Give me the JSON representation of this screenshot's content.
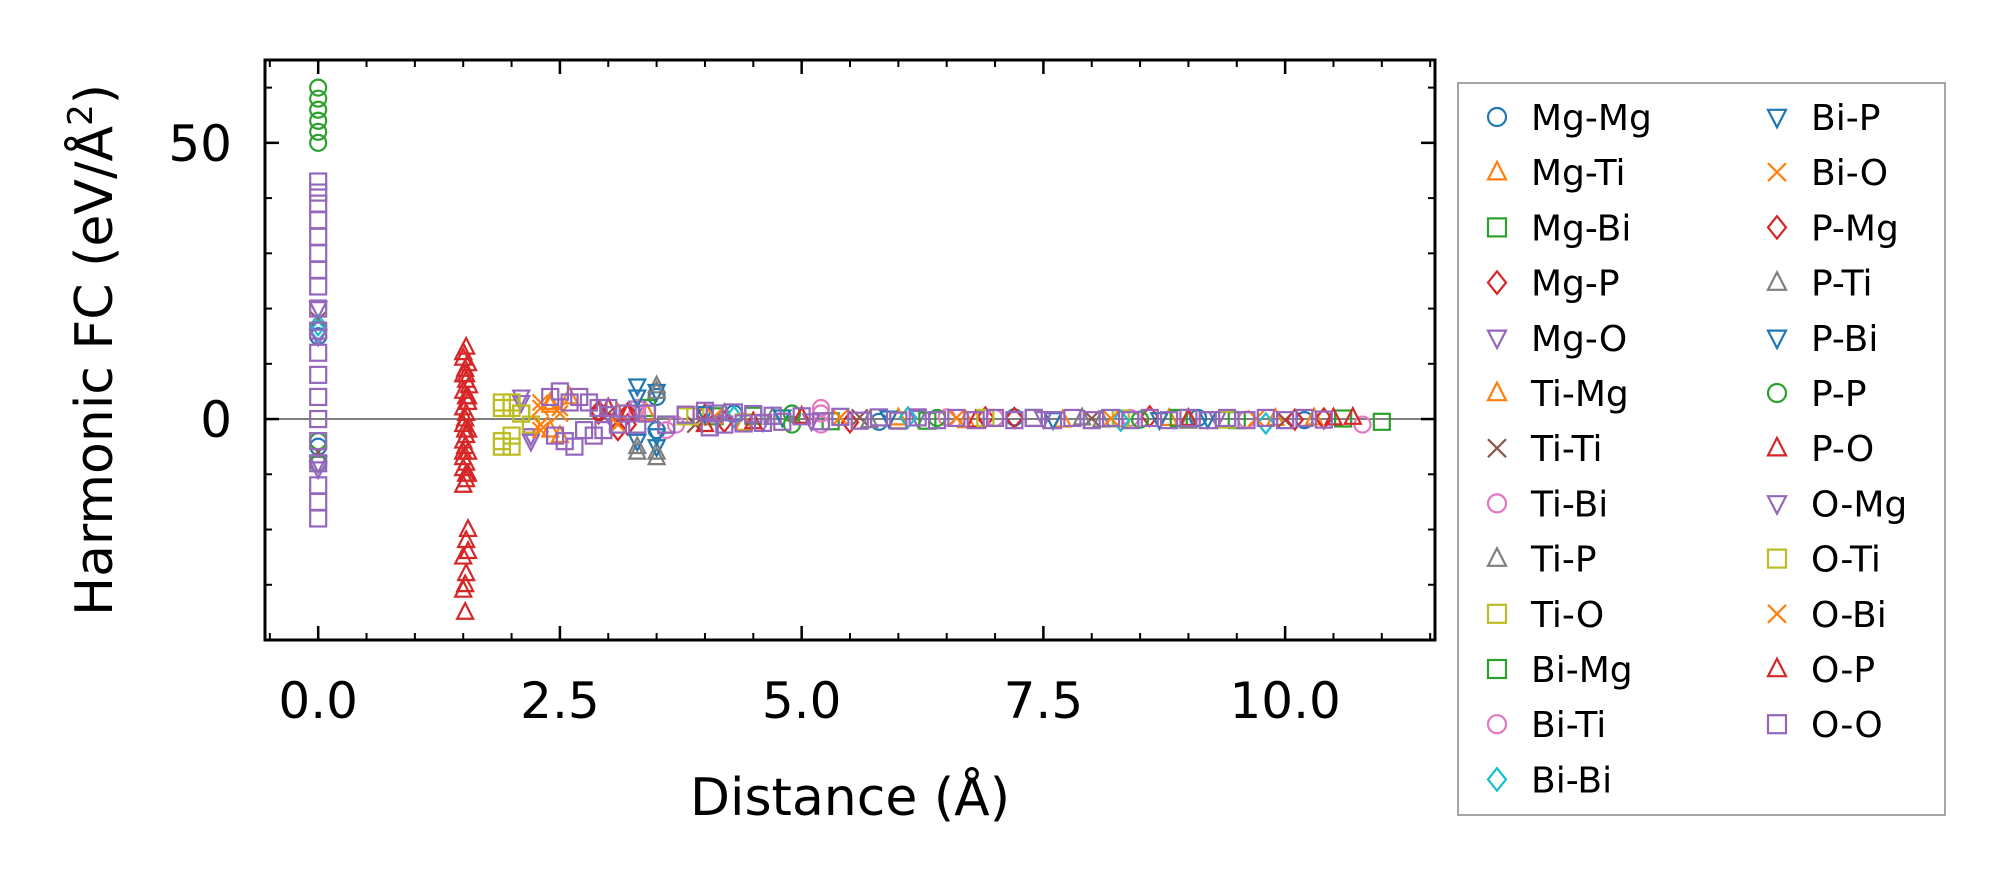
{
  "chart_data": {
    "type": "scatter",
    "title": "",
    "xlabel": "Distance (Å)",
    "ylabel": "Harmonic FC (eV/Å",
    "ylabel_sup": "2",
    "ylabel_close": ")",
    "xlim": [
      -0.55,
      11.55
    ],
    "ylim": [
      -40,
      65
    ],
    "xticks": [
      0.0,
      2.5,
      5.0,
      7.5,
      10.0
    ],
    "xtick_labels": [
      "0.0",
      "2.5",
      "5.0",
      "7.5",
      "10.0"
    ],
    "yticks": [
      0,
      50
    ],
    "ytick_labels": [
      "0",
      "50"
    ],
    "x_minor_step": 0.5,
    "y_minor_step": 10,
    "zero_line": true,
    "grid": false,
    "legend_position": "right (outside)",
    "series": [
      {
        "name": "Mg-Mg",
        "marker": "circle",
        "color": "#1f77b4",
        "points": [
          [
            0,
            15
          ],
          [
            0,
            -5
          ],
          [
            3.5,
            4
          ],
          [
            3.5,
            -2
          ],
          [
            4.3,
            1
          ],
          [
            5.8,
            -0.5
          ],
          [
            7.2,
            0.3
          ],
          [
            9.1,
            0.2
          ],
          [
            10.2,
            -0.2
          ]
        ]
      },
      {
        "name": "Mg-Ti",
        "marker": "triangle-up",
        "color": "#ff7f0e",
        "points": [
          [
            2.4,
            3
          ],
          [
            2.4,
            -2
          ],
          [
            2.6,
            4
          ],
          [
            3.1,
            1
          ],
          [
            4.4,
            -0.8
          ],
          [
            6.0,
            0.2
          ],
          [
            6.7,
            -0.3
          ],
          [
            8.8,
            0.1
          ],
          [
            10.3,
            0.2
          ]
        ]
      },
      {
        "name": "Mg-Bi",
        "marker": "square",
        "color": "#2ca02c",
        "points": [
          [
            3.4,
            2
          ],
          [
            3.6,
            -1
          ],
          [
            4.1,
            0.5
          ],
          [
            5.3,
            -0.4
          ],
          [
            7.4,
            0.2
          ],
          [
            9.5,
            -0.2
          ],
          [
            11.0,
            -0.5
          ]
        ]
      },
      {
        "name": "Mg-P",
        "marker": "diamond",
        "color": "#d62728",
        "points": [
          [
            2.9,
            1.5
          ],
          [
            3.2,
            -1
          ],
          [
            4.0,
            0.8
          ],
          [
            5.5,
            -0.6
          ],
          [
            6.9,
            0.3
          ],
          [
            8.6,
            0.5
          ],
          [
            10.4,
            0.1
          ]
        ]
      },
      {
        "name": "Mg-O",
        "marker": "triangle-down",
        "color": "#9467bd",
        "points": [
          [
            0,
            20
          ],
          [
            0,
            -8
          ],
          [
            2.1,
            4
          ],
          [
            2.2,
            -3
          ],
          [
            3.3,
            2
          ],
          [
            4.6,
            -0.5
          ],
          [
            6.2,
            0.3
          ],
          [
            9.3,
            0.1
          ]
        ]
      },
      {
        "name": "Ti-Mg",
        "marker": "triangle-up",
        "color": "#ff7f0e",
        "points": [
          [
            2.4,
            2.5
          ],
          [
            2.5,
            -3
          ],
          [
            3.4,
            1
          ],
          [
            5.0,
            0.4
          ],
          [
            7.7,
            -0.2
          ],
          [
            9.9,
            0.1
          ]
        ]
      },
      {
        "name": "Ti-Ti",
        "marker": "x",
        "color": "#8c564b",
        "points": [
          [
            0,
            18
          ],
          [
            0,
            -6
          ],
          [
            3.0,
            1
          ],
          [
            3.9,
            -1
          ],
          [
            5.6,
            0.3
          ],
          [
            8.0,
            0.1
          ],
          [
            10.0,
            -0.2
          ]
        ]
      },
      {
        "name": "Ti-Bi",
        "marker": "circle",
        "color": "#e377c2",
        "points": [
          [
            3.3,
            2
          ],
          [
            3.6,
            -2
          ],
          [
            5.2,
            2
          ],
          [
            5.2,
            -1
          ],
          [
            6.5,
            0.3
          ],
          [
            8.4,
            0.2
          ],
          [
            10.8,
            -1
          ]
        ]
      },
      {
        "name": "Ti-P",
        "marker": "triangle-up",
        "color": "#7f7f7f",
        "points": [
          [
            3.5,
            6
          ],
          [
            3.5,
            -7
          ],
          [
            3.3,
            -6
          ],
          [
            4.2,
            1
          ],
          [
            5.7,
            -0.3
          ],
          [
            7.9,
            0.2
          ],
          [
            9.0,
            -0.4
          ]
        ]
      },
      {
        "name": "Ti-O",
        "marker": "square",
        "color": "#bcbd22",
        "points": [
          [
            1.9,
            3
          ],
          [
            1.9,
            -5
          ],
          [
            2.0,
            2
          ],
          [
            2.0,
            -3
          ],
          [
            2.1,
            1
          ],
          [
            2.2,
            -1
          ],
          [
            3.9,
            0.5
          ],
          [
            6.0,
            -0.2
          ],
          [
            8.3,
            0.1
          ]
        ]
      },
      {
        "name": "Bi-Mg",
        "marker": "square",
        "color": "#2ca02c",
        "points": [
          [
            3.4,
            1
          ],
          [
            3.6,
            -1
          ],
          [
            4.5,
            0.6
          ],
          [
            6.3,
            -0.3
          ],
          [
            8.9,
            0.2
          ],
          [
            10.6,
            0.1
          ]
        ]
      },
      {
        "name": "Bi-Ti",
        "marker": "circle",
        "color": "#e377c2",
        "points": [
          [
            3.3,
            1
          ],
          [
            3.7,
            -1
          ],
          [
            5.2,
            1
          ],
          [
            7.0,
            0.2
          ],
          [
            9.6,
            -0.1
          ]
        ]
      },
      {
        "name": "Bi-Bi",
        "marker": "diamond",
        "color": "#17becf",
        "points": [
          [
            0,
            17
          ],
          [
            0,
            16
          ],
          [
            4.3,
            0.4
          ],
          [
            6.1,
            0.3
          ],
          [
            8.3,
            -0.3
          ],
          [
            9.8,
            -0.8
          ]
        ]
      },
      {
        "name": "Bi-P",
        "marker": "triangle-down",
        "color": "#1f77b4",
        "points": [
          [
            3.3,
            6
          ],
          [
            3.3,
            -4
          ],
          [
            3.5,
            5
          ],
          [
            3.5,
            -5
          ],
          [
            4.0,
            1
          ],
          [
            5.9,
            0.2
          ],
          [
            8.7,
            -0.1
          ]
        ]
      },
      {
        "name": "Bi-O",
        "marker": "x",
        "color": "#ff7f0e",
        "points": [
          [
            2.3,
            2
          ],
          [
            2.3,
            -1
          ],
          [
            2.5,
            1
          ],
          [
            4.1,
            0.5
          ],
          [
            6.6,
            0.2
          ],
          [
            9.7,
            0.1
          ]
        ]
      },
      {
        "name": "P-Mg",
        "marker": "diamond",
        "color": "#d62728",
        "points": [
          [
            2.9,
            1
          ],
          [
            3.1,
            -2
          ],
          [
            3.2,
            1
          ],
          [
            4.2,
            -0.5
          ],
          [
            7.2,
            0.2
          ],
          [
            10.1,
            -0.1
          ]
        ]
      },
      {
        "name": "P-Ti",
        "marker": "triangle-up",
        "color": "#7f7f7f",
        "points": [
          [
            3.3,
            -5
          ],
          [
            3.5,
            5
          ],
          [
            3.5,
            -6
          ],
          [
            4.7,
            0.3
          ],
          [
            8.1,
            -0.2
          ]
        ]
      },
      {
        "name": "P-Bi",
        "marker": "triangle-down",
        "color": "#1f77b4",
        "points": [
          [
            3.3,
            4
          ],
          [
            3.5,
            -3
          ],
          [
            4.8,
            0.4
          ],
          [
            7.6,
            -0.1
          ],
          [
            9.2,
            0.1
          ]
        ]
      },
      {
        "name": "P-P",
        "marker": "circle",
        "color": "#2ca02c",
        "points": [
          [
            0,
            60
          ],
          [
            0,
            58
          ],
          [
            0,
            56
          ],
          [
            0,
            54
          ],
          [
            0,
            52
          ],
          [
            0,
            50
          ],
          [
            0,
            -4
          ],
          [
            0,
            -8
          ],
          [
            4.9,
            1
          ],
          [
            4.9,
            -1
          ],
          [
            6.4,
            0.2
          ],
          [
            8.5,
            -0.1
          ]
        ]
      },
      {
        "name": "P-O",
        "marker": "triangle-up",
        "color": "#d62728",
        "points": [
          [
            1.53,
            13
          ],
          [
            1.5,
            11
          ],
          [
            1.55,
            10
          ],
          [
            1.52,
            9
          ],
          [
            1.5,
            8
          ],
          [
            1.53,
            7
          ],
          [
            1.56,
            6
          ],
          [
            1.5,
            5
          ],
          [
            1.53,
            4
          ],
          [
            1.55,
            3
          ],
          [
            1.5,
            2
          ],
          [
            1.53,
            1
          ],
          [
            1.52,
            0
          ],
          [
            1.5,
            -1
          ],
          [
            1.55,
            -2
          ],
          [
            1.53,
            -3
          ],
          [
            1.5,
            -4
          ],
          [
            1.52,
            -5
          ],
          [
            1.55,
            -6
          ],
          [
            1.5,
            -7
          ],
          [
            1.53,
            -8
          ],
          [
            1.5,
            -9
          ],
          [
            1.55,
            -10
          ],
          [
            1.53,
            -11
          ],
          [
            1.5,
            -12
          ],
          [
            1.55,
            -20
          ],
          [
            1.53,
            -22
          ],
          [
            1.5,
            -25
          ],
          [
            1.53,
            -28
          ],
          [
            1.5,
            -31
          ],
          [
            1.52,
            -35
          ],
          [
            3.0,
            2
          ],
          [
            4.0,
            -1
          ],
          [
            5.0,
            0.5
          ],
          [
            6.8,
            -0.2
          ],
          [
            9.0,
            0.1
          ],
          [
            10.5,
            0.2
          ]
        ]
      },
      {
        "name": "O-Mg",
        "marker": "triangle-down",
        "color": "#9467bd",
        "points": [
          [
            0,
            15
          ],
          [
            0,
            -9
          ],
          [
            2.1,
            3
          ],
          [
            2.2,
            -4
          ],
          [
            3.0,
            1
          ],
          [
            5.1,
            -0.3
          ],
          [
            7.5,
            0.1
          ]
        ]
      },
      {
        "name": "O-Ti",
        "marker": "square",
        "color": "#bcbd22",
        "points": [
          [
            1.9,
            2
          ],
          [
            1.9,
            -4
          ],
          [
            2.0,
            3
          ],
          [
            2.0,
            -5
          ],
          [
            2.1,
            1
          ],
          [
            3.8,
            0.5
          ],
          [
            4.4,
            -0.6
          ],
          [
            6.9,
            0.2
          ],
          [
            9.4,
            -0.1
          ]
        ]
      },
      {
        "name": "O-Bi",
        "marker": "x",
        "color": "#ff7f0e",
        "points": [
          [
            2.3,
            3
          ],
          [
            2.3,
            -2
          ],
          [
            2.5,
            2
          ],
          [
            3.1,
            -1
          ],
          [
            5.4,
            0.3
          ],
          [
            8.2,
            0.1
          ]
        ]
      },
      {
        "name": "O-P",
        "marker": "triangle-up",
        "color": "#d62728",
        "points": [
          [
            1.5,
            12
          ],
          [
            1.53,
            8
          ],
          [
            1.55,
            4
          ],
          [
            1.52,
            -2
          ],
          [
            1.5,
            -6
          ],
          [
            1.53,
            -10
          ],
          [
            1.55,
            -24
          ],
          [
            1.52,
            -30
          ],
          [
            3.2,
            1
          ],
          [
            4.5,
            -0.5
          ],
          [
            10.7,
            0.3
          ]
        ]
      },
      {
        "name": "O-O",
        "marker": "square",
        "color": "#9467bd",
        "points": [
          [
            0,
            43
          ],
          [
            0,
            41
          ],
          [
            0,
            39
          ],
          [
            0,
            36
          ],
          [
            0,
            33
          ],
          [
            0,
            30
          ],
          [
            0,
            27
          ],
          [
            0,
            24
          ],
          [
            0,
            20
          ],
          [
            0,
            16
          ],
          [
            0,
            12
          ],
          [
            0,
            8
          ],
          [
            0,
            4
          ],
          [
            0,
            0
          ],
          [
            0,
            -4
          ],
          [
            0,
            -8
          ],
          [
            0,
            -12
          ],
          [
            0,
            -15
          ],
          [
            0,
            -18
          ],
          [
            2.4,
            4
          ],
          [
            2.45,
            -3
          ],
          [
            2.5,
            5
          ],
          [
            2.55,
            -4
          ],
          [
            2.6,
            3
          ],
          [
            2.65,
            -5
          ],
          [
            2.7,
            4
          ],
          [
            2.75,
            -2
          ],
          [
            2.8,
            3
          ],
          [
            2.85,
            -3
          ],
          [
            2.9,
            2
          ],
          [
            2.95,
            -2
          ],
          [
            3.0,
            2
          ],
          [
            3.1,
            -1
          ],
          [
            3.2,
            1
          ],
          [
            3.3,
            -1
          ],
          [
            3.4,
            1
          ],
          [
            3.6,
            -1
          ],
          [
            3.8,
            0.8
          ],
          [
            4.0,
            1.5
          ],
          [
            4.05,
            -1.5
          ],
          [
            4.1,
            1
          ],
          [
            4.2,
            -1
          ],
          [
            4.3,
            1.2
          ],
          [
            4.4,
            -0.8
          ],
          [
            4.5,
            0.9
          ],
          [
            4.6,
            -0.7
          ],
          [
            4.7,
            0.6
          ],
          [
            4.8,
            -0.5
          ],
          [
            5.0,
            0.5
          ],
          [
            5.2,
            -0.4
          ],
          [
            5.4,
            0.4
          ],
          [
            5.6,
            -0.3
          ],
          [
            5.8,
            0.3
          ],
          [
            6.0,
            -0.3
          ],
          [
            6.2,
            0.3
          ],
          [
            6.4,
            -0.2
          ],
          [
            6.6,
            0.2
          ],
          [
            6.8,
            -0.2
          ],
          [
            7.0,
            0.2
          ],
          [
            7.2,
            -0.2
          ],
          [
            7.4,
            0.2
          ],
          [
            7.6,
            -0.2
          ],
          [
            7.8,
            0.2
          ],
          [
            8.0,
            -0.2
          ],
          [
            8.2,
            0.2
          ],
          [
            8.4,
            -0.2
          ],
          [
            8.6,
            0.2
          ],
          [
            8.8,
            -0.2
          ],
          [
            9.0,
            0.2
          ],
          [
            9.2,
            -0.2
          ],
          [
            9.4,
            0.2
          ],
          [
            9.6,
            -0.2
          ],
          [
            9.8,
            0.2
          ],
          [
            10.0,
            -0.2
          ],
          [
            10.2,
            0.2
          ],
          [
            10.4,
            -0.1
          ]
        ]
      }
    ]
  }
}
